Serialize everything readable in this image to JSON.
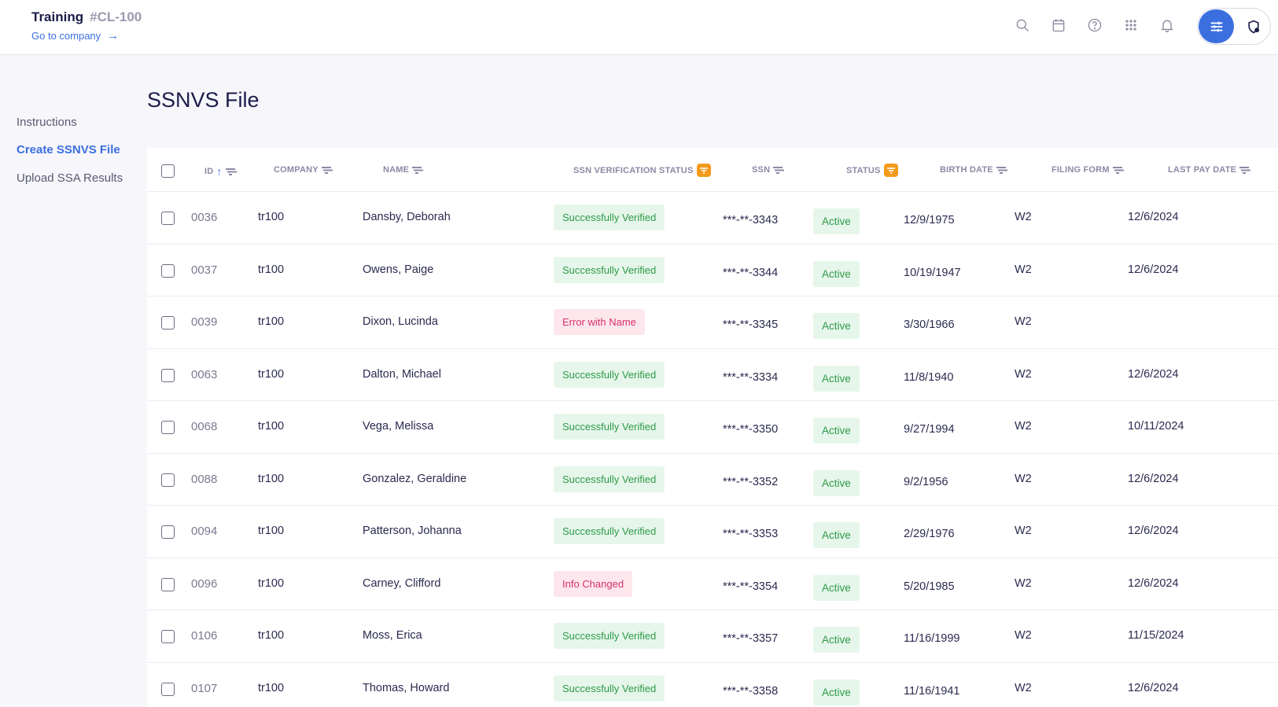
{
  "header": {
    "company_name": "Training",
    "company_code": "#CL-100",
    "goto_label": "Go to company",
    "icons": [
      "search-icon",
      "calendar-icon",
      "help-icon",
      "apps-grid-icon",
      "bell-icon"
    ],
    "toggle_left_icon": "sliders-icon",
    "toggle_right_icon": "shield-icon",
    "accent_color": "#3b6fe0"
  },
  "sidebar": {
    "items": [
      {
        "label": "Instructions",
        "active": false
      },
      {
        "label": "Create SSNVS File",
        "active": true
      },
      {
        "label": "Upload SSA Results",
        "active": false
      }
    ]
  },
  "page": {
    "title": "SSNVS File"
  },
  "table": {
    "columns": [
      {
        "label": "ID",
        "sorted": "asc",
        "filter_active": false
      },
      {
        "label": "COMPANY",
        "filter_active": false
      },
      {
        "label": "NAME",
        "filter_active": false
      },
      {
        "label": "SSN VERIFICATION STATUS",
        "filter_active": true
      },
      {
        "label": "SSN",
        "filter_active": false
      },
      {
        "label": "STATUS",
        "filter_active": true
      },
      {
        "label": "BIRTH DATE",
        "filter_active": false
      },
      {
        "label": "FILING FORM",
        "filter_active": false
      },
      {
        "label": "LAST PAY DATE",
        "filter_active": false
      }
    ],
    "rows": [
      {
        "id": "0036",
        "company": "tr100",
        "name": "Dansby, Deborah",
        "verification": "Successfully Verified",
        "verification_type": "ok",
        "ssn": "***-**-3343",
        "status": "Active",
        "birth_date": "12/9/1975",
        "filing_form": "W2",
        "last_pay_date": "12/6/2024"
      },
      {
        "id": "0037",
        "company": "tr100",
        "name": "Owens, Paige",
        "verification": "Successfully Verified",
        "verification_type": "ok",
        "ssn": "***-**-3344",
        "status": "Active",
        "birth_date": "10/19/1947",
        "filing_form": "W2",
        "last_pay_date": "12/6/2024"
      },
      {
        "id": "0039",
        "company": "tr100",
        "name": "Dixon, Lucinda",
        "verification": "Error with Name",
        "verification_type": "err",
        "ssn": "***-**-3345",
        "status": "Active",
        "birth_date": "3/30/1966",
        "filing_form": "W2",
        "last_pay_date": ""
      },
      {
        "id": "0063",
        "company": "tr100",
        "name": "Dalton, Michael",
        "verification": "Successfully Verified",
        "verification_type": "ok",
        "ssn": "***-**-3334",
        "status": "Active",
        "birth_date": "11/8/1940",
        "filing_form": "W2",
        "last_pay_date": "12/6/2024"
      },
      {
        "id": "0068",
        "company": "tr100",
        "name": "Vega, Melissa",
        "verification": "Successfully Verified",
        "verification_type": "ok",
        "ssn": "***-**-3350",
        "status": "Active",
        "birth_date": "9/27/1994",
        "filing_form": "W2",
        "last_pay_date": "10/11/2024"
      },
      {
        "id": "0088",
        "company": "tr100",
        "name": "Gonzalez, Geraldine",
        "verification": "Successfully Verified",
        "verification_type": "ok",
        "ssn": "***-**-3352",
        "status": "Active",
        "birth_date": "9/2/1956",
        "filing_form": "W2",
        "last_pay_date": "12/6/2024"
      },
      {
        "id": "0094",
        "company": "tr100",
        "name": "Patterson, Johanna",
        "verification": "Successfully Verified",
        "verification_type": "ok",
        "ssn": "***-**-3353",
        "status": "Active",
        "birth_date": "2/29/1976",
        "filing_form": "W2",
        "last_pay_date": "12/6/2024"
      },
      {
        "id": "0096",
        "company": "tr100",
        "name": "Carney, Clifford",
        "verification": "Info Changed",
        "verification_type": "err",
        "ssn": "***-**-3354",
        "status": "Active",
        "birth_date": "5/20/1985",
        "filing_form": "W2",
        "last_pay_date": "12/6/2024"
      },
      {
        "id": "0106",
        "company": "tr100",
        "name": "Moss, Erica",
        "verification": "Successfully Verified",
        "verification_type": "ok",
        "ssn": "***-**-3357",
        "status": "Active",
        "birth_date": "11/16/1999",
        "filing_form": "W2",
        "last_pay_date": "11/15/2024"
      },
      {
        "id": "0107",
        "company": "tr100",
        "name": "Thomas, Howard",
        "verification": "Successfully Verified",
        "verification_type": "ok",
        "ssn": "***-**-3358",
        "status": "Active",
        "birth_date": "11/16/1941",
        "filing_form": "W2",
        "last_pay_date": "12/6/2024"
      }
    ]
  }
}
